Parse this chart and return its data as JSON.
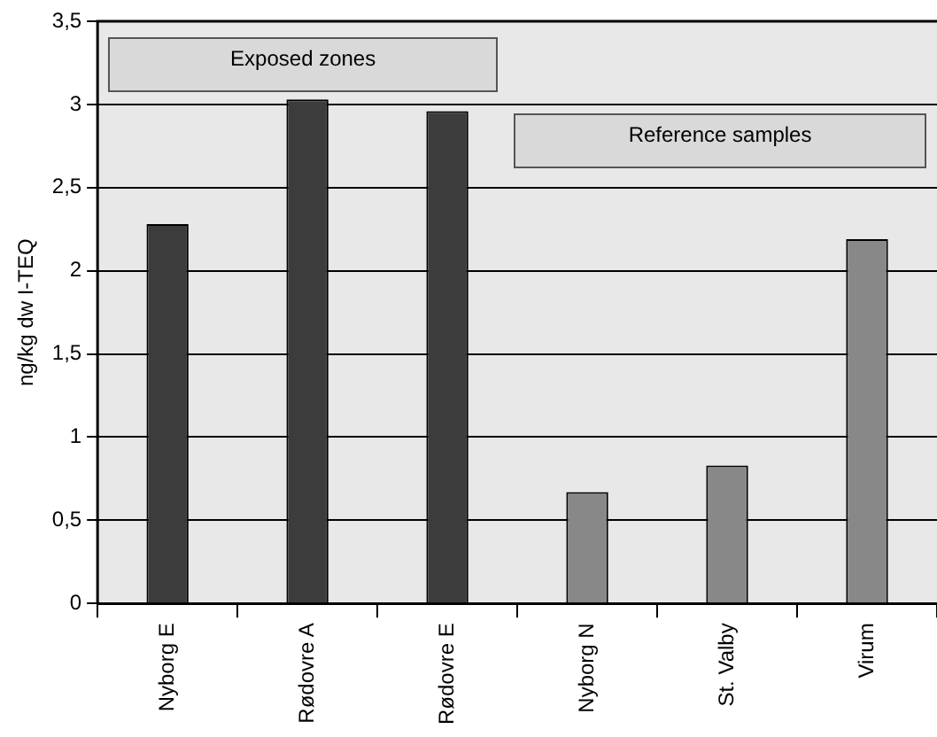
{
  "chart_data": {
    "type": "bar",
    "ylabel": "ng/kg dw I-TEQ",
    "categories": [
      "Nyborg E",
      "Rødovre A",
      "Rødovre E",
      "Nyborg N",
      "St. Valby",
      "Virum"
    ],
    "values": [
      2.28,
      3.03,
      2.96,
      0.67,
      0.83,
      2.19
    ],
    "colors": [
      "#3c3c3c",
      "#3c3c3c",
      "#3c3c3c",
      "#888888",
      "#888888",
      "#888888"
    ],
    "ylim": [
      0,
      3.5
    ],
    "yticks": [
      0,
      {
        "value": 0.5,
        "label": "0,5"
      },
      1,
      {
        "value": 1.5,
        "label": "1,5"
      },
      2,
      {
        "value": 2.5,
        "label": "2,5"
      },
      3,
      {
        "value": 3.5,
        "label": "3,5"
      }
    ],
    "grid": "y",
    "legend": false,
    "annotations": [
      "Exposed zones",
      "Reference samples"
    ]
  }
}
